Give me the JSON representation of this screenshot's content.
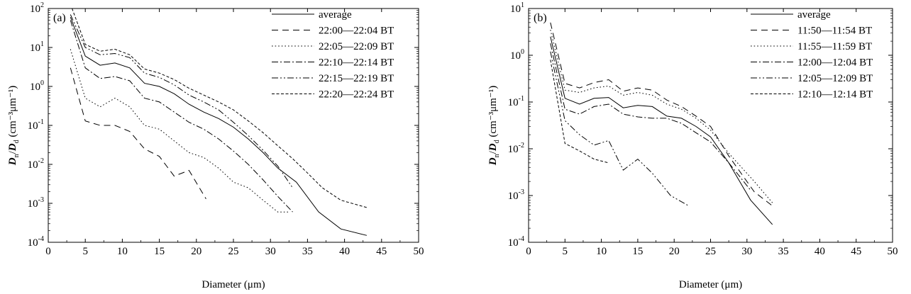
{
  "chart_data": [
    {
      "type": "line",
      "panel_label": "(a)",
      "xlabel": "Diameter (μm)",
      "ylabel": "Dn/Dd (cm⁻³μm⁻¹)",
      "ylabel_parts": {
        "D1": "D",
        "n": "n",
        "slash": "/",
        "D2": "D",
        "d": "d",
        "unit": "(cm⁻³μm⁻¹)"
      },
      "xlim": [
        0,
        50
      ],
      "ylim_log10": [
        -4,
        2
      ],
      "xticks": [
        "0",
        "5",
        "10",
        "15",
        "20",
        "25",
        "30",
        "35",
        "40",
        "45",
        "50"
      ],
      "yticks": [
        {
          "exp": -4,
          "base": "10",
          "sup": "-4"
        },
        {
          "exp": -3,
          "base": "10",
          "sup": "-3"
        },
        {
          "exp": -2,
          "base": "10",
          "sup": "-2"
        },
        {
          "exp": -1,
          "base": "10",
          "sup": "-1"
        },
        {
          "exp": 0,
          "base": "10",
          "sup": "0"
        },
        {
          "exp": 1,
          "base": "10",
          "sup": "1"
        },
        {
          "exp": 2,
          "base": "10",
          "sup": "2"
        }
      ],
      "legend_location": "top-right",
      "series": [
        {
          "name": "average",
          "dash": "solid",
          "x": [
            3.0,
            5.0,
            7.0,
            9.0,
            11.0,
            13.0,
            15.0,
            17.0,
            19.0,
            21.0,
            23.0,
            25.0,
            27.0,
            29.0,
            31.0,
            33.5,
            36.5,
            39.5,
            43.0
          ],
          "y": [
            60,
            6,
            3.5,
            4,
            3,
            1.2,
            1.0,
            0.65,
            0.35,
            0.22,
            0.15,
            0.09,
            0.045,
            0.02,
            0.008,
            0.0035,
            0.0006,
            0.00022,
            0.00015
          ]
        },
        {
          "name": "22:00—22:04 BT",
          "dash": "dashed",
          "x": [
            3.0,
            5.0,
            7.0,
            9.0,
            11.0,
            13.0,
            15.0,
            17.0,
            19.0,
            21.3
          ],
          "y": [
            3,
            0.13,
            0.1,
            0.1,
            0.07,
            0.025,
            0.016,
            0.005,
            0.007,
            0.0013
          ]
        },
        {
          "name": "22:05—22:09 BT",
          "dash": "dotted",
          "x": [
            3.0,
            5.0,
            7.0,
            9.0,
            11.0,
            13.0,
            15.0,
            17.0,
            19.0,
            21.0,
            23.0,
            25.0,
            27.0,
            29.0,
            31.0,
            32.5
          ],
          "y": [
            9,
            0.5,
            0.3,
            0.5,
            0.3,
            0.1,
            0.08,
            0.04,
            0.02,
            0.015,
            0.008,
            0.0035,
            0.0025,
            0.0012,
            0.0006,
            0.0006
          ]
        },
        {
          "name": "22:10—22:14 BT",
          "dash": "dashdot",
          "x": [
            3.0,
            5.0,
            7.0,
            9.0,
            11.0,
            13.0,
            15.0,
            17.0,
            19.0,
            21.0,
            23.0,
            25.0,
            27.0,
            29.0,
            31.0,
            33.0
          ],
          "y": [
            50,
            3,
            1.6,
            1.8,
            1.4,
            0.5,
            0.4,
            0.22,
            0.12,
            0.08,
            0.045,
            0.022,
            0.01,
            0.004,
            0.0015,
            0.0006
          ]
        },
        {
          "name": "22:15—22:19 BT",
          "dash": "dashdotdot",
          "x": [
            3.0,
            5.0,
            7.0,
            9.0,
            11.0,
            13.0,
            15.0,
            17.0,
            19.0,
            21.0,
            23.0,
            25.0,
            27.0,
            29.0,
            31.0,
            33.0
          ],
          "y": [
            70,
            10,
            6.5,
            7,
            5.5,
            2.2,
            1.7,
            1.1,
            0.6,
            0.4,
            0.25,
            0.12,
            0.055,
            0.023,
            0.009,
            0.0025
          ]
        },
        {
          "name": "22:20—22:24 BT",
          "dash": "shortdash",
          "x": [
            3.0,
            5.0,
            7.0,
            9.0,
            11.0,
            13.0,
            15.0,
            17.0,
            19.0,
            21.0,
            23.0,
            25.0,
            27.0,
            29.0,
            31.0,
            33.0,
            35.0,
            37.0,
            39.5,
            43.0
          ],
          "y": [
            130,
            12,
            8,
            9,
            6.5,
            2.8,
            2.2,
            1.5,
            0.9,
            0.6,
            0.4,
            0.25,
            0.13,
            0.065,
            0.03,
            0.014,
            0.006,
            0.0025,
            0.0012,
            0.00078
          ]
        }
      ]
    },
    {
      "type": "line",
      "panel_label": "(b)",
      "xlabel": "Diameter (μm)",
      "ylabel": "Dn/Dd (cm⁻³μm⁻¹)",
      "ylabel_parts": {
        "D1": "D",
        "n": "n",
        "slash": "/",
        "D2": "D",
        "d": "d",
        "unit": "(cm⁻³μm⁻¹)"
      },
      "xlim": [
        0,
        50
      ],
      "ylim_log10": [
        -4,
        1
      ],
      "xticks": [
        "0",
        "5",
        "10",
        "15",
        "20",
        "25",
        "30",
        "35",
        "40",
        "45",
        "50"
      ],
      "yticks": [
        {
          "exp": -4,
          "base": "10",
          "sup": "-4"
        },
        {
          "exp": -3,
          "base": "10",
          "sup": "-3"
        },
        {
          "exp": -2,
          "base": "10",
          "sup": "-2"
        },
        {
          "exp": -1,
          "base": "10",
          "sup": "-1"
        },
        {
          "exp": 0,
          "base": "10",
          "sup": "0"
        },
        {
          "exp": 1,
          "base": "10",
          "sup": "1"
        }
      ],
      "legend_location": "top-right",
      "series": [
        {
          "name": "average",
          "dash": "solid",
          "x": [
            3.0,
            5.0,
            7.0,
            9.0,
            11.0,
            13.0,
            15.0,
            17.0,
            19.0,
            21.0,
            23.0,
            25.0,
            27.5,
            30.5,
            33.5
          ],
          "y": [
            2.5,
            0.12,
            0.09,
            0.12,
            0.125,
            0.075,
            0.085,
            0.08,
            0.05,
            0.045,
            0.03,
            0.018,
            0.005,
            0.0008,
            0.00024
          ]
        },
        {
          "name": "11:50—11:54 BT",
          "dash": "dashed",
          "x": [
            3.0,
            5.0,
            7.0,
            9.0,
            11.0,
            13.0,
            15.0,
            17.0,
            19.0,
            21.0,
            23.0,
            25.0,
            27.5,
            31.0,
            33.5
          ],
          "y": [
            5,
            0.25,
            0.2,
            0.26,
            0.3,
            0.17,
            0.2,
            0.18,
            0.11,
            0.08,
            0.05,
            0.03,
            0.007,
            0.0012,
            0.0006
          ]
        },
        {
          "name": "11:55—11:59 BT",
          "dash": "dotted",
          "x": [
            3.0,
            5.0,
            7.0,
            9.0,
            11.0,
            13.0,
            15.0,
            17.0,
            19.0,
            21.0,
            23.0,
            25.0,
            27.5,
            31.0,
            33.5
          ],
          "y": [
            3.5,
            0.18,
            0.16,
            0.2,
            0.22,
            0.14,
            0.16,
            0.14,
            0.09,
            0.07,
            0.045,
            0.025,
            0.008,
            0.002,
            0.0007
          ]
        },
        {
          "name": "12:00—12:04 BT",
          "dash": "dashdot",
          "x": [
            3.0,
            5.0,
            7.0,
            9.0,
            11.0,
            13.0,
            15.0,
            17.0,
            19.0,
            21.0,
            23.0,
            25.0,
            27.5,
            30.5
          ],
          "y": [
            1.8,
            0.07,
            0.055,
            0.08,
            0.09,
            0.055,
            0.048,
            0.045,
            0.045,
            0.035,
            0.022,
            0.014,
            0.005,
            0.0013
          ]
        },
        {
          "name": "12:05—12:09 BT",
          "dash": "dashdotdot",
          "x": [
            3.0,
            5.0,
            7.0,
            9.0,
            11.0,
            13.0,
            15.0,
            17.0,
            19.5,
            22.0
          ],
          "y": [
            1.2,
            0.04,
            0.02,
            0.012,
            0.015,
            0.0035,
            0.006,
            0.003,
            0.001,
            0.0006
          ]
        },
        {
          "name": "12:10—12:14 BT",
          "dash": "shortdash",
          "x": [
            3.0,
            5.0,
            7.0,
            9.0,
            11.0
          ],
          "y": [
            0.8,
            0.013,
            0.009,
            0.006,
            0.005
          ]
        }
      ]
    }
  ]
}
